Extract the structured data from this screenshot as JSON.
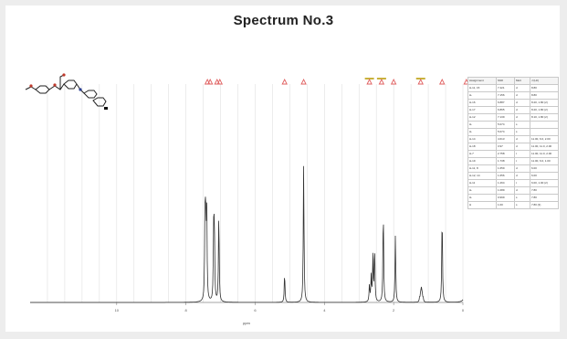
{
  "title": "Spectrum No.3",
  "chart_data": {
    "type": "line",
    "title": "Spectrum No.3",
    "xlabel": "ppm",
    "xlim": [
      12.5,
      0
    ],
    "x_reversed": true,
    "ylim": [
      0,
      1.0
    ],
    "x_ticks": [
      10,
      8,
      6,
      4,
      2,
      0
    ],
    "grid": "vertical",
    "line_color": "#333333",
    "peak_marker_color": "#e06060",
    "multiplet_bar_color": "#c9b23c",
    "peaks": [
      {
        "ppm": 7.45,
        "h": 0.34
      },
      {
        "ppm": 7.43,
        "h": 0.4
      },
      {
        "ppm": 7.4,
        "h": 0.43
      },
      {
        "ppm": 7.2,
        "h": 0.3
      },
      {
        "ppm": 7.18,
        "h": 0.36
      },
      {
        "ppm": 7.05,
        "h": 0.43
      },
      {
        "ppm": 5.15,
        "h": 0.14
      },
      {
        "ppm": 4.6,
        "h": 0.66
      },
      {
        "ppm": 2.7,
        "h": 0.08
      },
      {
        "ppm": 2.65,
        "h": 0.12
      },
      {
        "ppm": 2.6,
        "h": 0.22
      },
      {
        "ppm": 2.55,
        "h": 0.26
      },
      {
        "ppm": 2.3,
        "h": 0.45
      },
      {
        "ppm": 1.95,
        "h": 0.32
      },
      {
        "ppm": 1.25,
        "h": 0.02
      },
      {
        "ppm": 1.22,
        "h": 0.04
      },
      {
        "ppm": 1.2,
        "h": 0.05
      },
      {
        "ppm": 1.18,
        "h": 0.04
      },
      {
        "ppm": 1.15,
        "h": 0.02
      },
      {
        "ppm": 0.6,
        "h": 0.43
      },
      {
        "ppm": -0.1,
        "h": 0.92
      }
    ],
    "markers": [
      {
        "ppm": 7.38,
        "multiplet": false
      },
      {
        "ppm": 7.3,
        "multiplet": false
      },
      {
        "ppm": 7.1,
        "multiplet": false
      },
      {
        "ppm": 7.02,
        "multiplet": false
      },
      {
        "ppm": 5.15,
        "multiplet": false
      },
      {
        "ppm": 4.6,
        "multiplet": false
      },
      {
        "ppm": 2.7,
        "multiplet": true
      },
      {
        "ppm": 2.35,
        "multiplet": true
      },
      {
        "ppm": 2.0,
        "multiplet": false
      },
      {
        "ppm": 1.22,
        "multiplet": true
      },
      {
        "ppm": 0.6,
        "multiplet": false
      },
      {
        "ppm": -0.1,
        "multiplet": false
      }
    ]
  },
  "peak_table": {
    "headers": [
      "Assignment",
      "Shift",
      "Mult",
      "J (Hz)"
    ],
    "rows": [
      [
        "H-11, 15",
        "7.421",
        "d",
        "8.80"
      ],
      [
        "H-",
        "7.156",
        "d",
        "8.80"
      ],
      [
        "H-16",
        "6.887",
        "d",
        "8.20, 1.80 (2)"
      ],
      [
        "H-17",
        "6.865",
        "d",
        "8.20, 1.80 (2)"
      ],
      [
        "H-12",
        "7.139",
        "d",
        "8.10, 1.80 (2)"
      ],
      [
        "H-",
        "5.074",
        "s",
        ""
      ],
      [
        "H-",
        "5.074",
        "s",
        ""
      ],
      [
        "H-14",
        "4.613",
        "d",
        "11.00, 6.0, 2.00"
      ],
      [
        "H-18",
        "3.97",
        "d",
        "11.00, 11.0, 2.00"
      ],
      [
        "H-7",
        "2.758",
        "t",
        "11.00, 11.0, 2.00"
      ],
      [
        "H-19",
        "1.738",
        "t",
        "11.00, 6.0, 1.00"
      ],
      [
        "H-11, 8",
        "1.659",
        "d",
        "6.00"
      ],
      [
        "H-12, 14",
        "1.656",
        "d",
        "6.00"
      ],
      [
        "H-11",
        "1.264",
        "t",
        "6.00, 1.00 (2)"
      ],
      [
        "H-",
        "1.089",
        "d",
        "7.80"
      ],
      [
        "H-",
        "0.999",
        "s",
        "7.80"
      ],
      [
        "H",
        "1.00",
        "s",
        "7.80 (3)"
      ]
    ]
  }
}
